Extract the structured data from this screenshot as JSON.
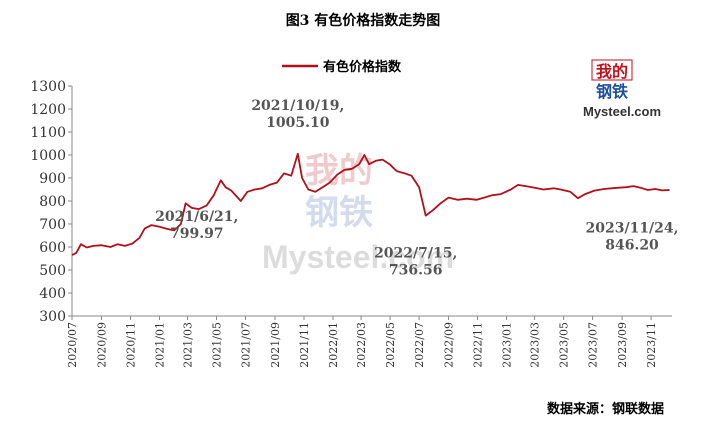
{
  "figure_title": "图3 有色价格指数走势图",
  "source_note": "数据来源：钢联数据",
  "logo": {
    "text_top": "我的",
    "text_bottom": "钢铁",
    "text_brand": "Mysteel.com",
    "color": "#c0121e"
  },
  "watermark": {
    "text_top": "我的",
    "text_bottom": "钢铁",
    "text_brand": "Mysteel.com"
  },
  "colors": {
    "series": "#b30f1a",
    "axis": "#888888"
  },
  "chart_data": {
    "type": "line",
    "title": "",
    "xlabel": "",
    "ylabel": "",
    "ylim": [
      300,
      1300
    ],
    "y_ticks": [
      300,
      400,
      500,
      600,
      700,
      800,
      900,
      1000,
      1100,
      1200,
      1300
    ],
    "x_range": [
      "2020-07-01",
      "2023-12-15"
    ],
    "x_tick_labels": [
      "2020/07",
      "2020/09",
      "2020/11",
      "2021/01",
      "2021/03",
      "2021/05",
      "2021/07",
      "2021/09",
      "2021/11",
      "2022/01",
      "2022/03",
      "2022/05",
      "2022/07",
      "2022/09",
      "2022/11",
      "2023/01",
      "2023/03",
      "2023/05",
      "2023/07",
      "2023/09",
      "2023/11"
    ],
    "grid": false,
    "legend": {
      "position": "top-center"
    },
    "series": [
      {
        "name": "有色价格指数",
        "points": [
          [
            "2020-07-01",
            565
          ],
          [
            "2020-07-10",
            575
          ],
          [
            "2020-07-20",
            612
          ],
          [
            "2020-08-01",
            598
          ],
          [
            "2020-08-15",
            605
          ],
          [
            "2020-09-01",
            608
          ],
          [
            "2020-09-20",
            600
          ],
          [
            "2020-10-05",
            612
          ],
          [
            "2020-10-20",
            605
          ],
          [
            "2020-11-05",
            615
          ],
          [
            "2020-11-20",
            640
          ],
          [
            "2020-12-01",
            680
          ],
          [
            "2020-12-15",
            695
          ],
          [
            "2021-01-01",
            688
          ],
          [
            "2021-01-15",
            680
          ],
          [
            "2021-02-01",
            672
          ],
          [
            "2021-02-15",
            700
          ],
          [
            "2021-02-25",
            790
          ],
          [
            "2021-03-10",
            770
          ],
          [
            "2021-03-25",
            765
          ],
          [
            "2021-04-10",
            780
          ],
          [
            "2021-04-25",
            825
          ],
          [
            "2021-05-10",
            890
          ],
          [
            "2021-05-20",
            860
          ],
          [
            "2021-06-01",
            845
          ],
          [
            "2021-06-21",
            799.97
          ],
          [
            "2021-07-05",
            840
          ],
          [
            "2021-07-20",
            850
          ],
          [
            "2021-08-05",
            855
          ],
          [
            "2021-08-20",
            870
          ],
          [
            "2021-09-05",
            880
          ],
          [
            "2021-09-20",
            920
          ],
          [
            "2021-10-05",
            910
          ],
          [
            "2021-10-19",
            1005.1
          ],
          [
            "2021-10-28",
            900
          ],
          [
            "2021-11-10",
            850
          ],
          [
            "2021-11-25",
            840
          ],
          [
            "2021-12-10",
            860
          ],
          [
            "2021-12-25",
            880
          ],
          [
            "2022-01-10",
            915
          ],
          [
            "2022-01-25",
            935
          ],
          [
            "2022-02-10",
            940
          ],
          [
            "2022-02-25",
            960
          ],
          [
            "2022-03-08",
            1000
          ],
          [
            "2022-03-18",
            960
          ],
          [
            "2022-04-01",
            975
          ],
          [
            "2022-04-15",
            980
          ],
          [
            "2022-04-30",
            960
          ],
          [
            "2022-05-15",
            930
          ],
          [
            "2022-06-01",
            920
          ],
          [
            "2022-06-15",
            910
          ],
          [
            "2022-07-01",
            860
          ],
          [
            "2022-07-15",
            736.56
          ],
          [
            "2022-07-30",
            760
          ],
          [
            "2022-08-15",
            790
          ],
          [
            "2022-09-01",
            815
          ],
          [
            "2022-09-20",
            805
          ],
          [
            "2022-10-10",
            810
          ],
          [
            "2022-10-30",
            805
          ],
          [
            "2022-11-15",
            815
          ],
          [
            "2022-12-01",
            825
          ],
          [
            "2022-12-20",
            830
          ],
          [
            "2023-01-10",
            850
          ],
          [
            "2023-01-25",
            870
          ],
          [
            "2023-02-10",
            865
          ],
          [
            "2023-03-01",
            858
          ],
          [
            "2023-03-20",
            850
          ],
          [
            "2023-04-10",
            855
          ],
          [
            "2023-04-25",
            850
          ],
          [
            "2023-05-15",
            840
          ],
          [
            "2023-05-31",
            812
          ],
          [
            "2023-06-15",
            830
          ],
          [
            "2023-07-05",
            845
          ],
          [
            "2023-07-25",
            852
          ],
          [
            "2023-08-10",
            855
          ],
          [
            "2023-08-25",
            858
          ],
          [
            "2023-09-10",
            860
          ],
          [
            "2023-09-25",
            865
          ],
          [
            "2023-10-10",
            858
          ],
          [
            "2023-10-25",
            848
          ],
          [
            "2023-11-10",
            852
          ],
          [
            "2023-11-24",
            846.2
          ],
          [
            "2023-12-10",
            848
          ]
        ]
      }
    ],
    "annotations": [
      {
        "label": "2021/10/19,\n1005.10",
        "date": "2021-10-19",
        "value": 1005.1
      },
      {
        "label": "2021/6/21,\n799.97",
        "date": "2021-06-21",
        "value": 799.97
      },
      {
        "label": "2022/7/15,\n736.56",
        "date": "2022-07-15",
        "value": 736.56
      },
      {
        "label": "2023/11/24,\n846.20",
        "date": "2023-11-24",
        "value": 846.2
      }
    ]
  }
}
